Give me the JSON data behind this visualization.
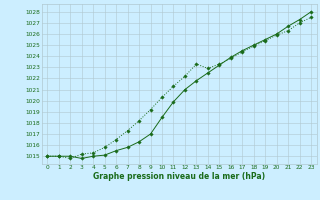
{
  "xlabel": "Graphe pression niveau de la mer (hPa)",
  "bg_color": "#cceeff",
  "line_color": "#1a6b1a",
  "grid_color": "#b0c8d0",
  "xlim": [
    -0.5,
    23.5
  ],
  "ylim": [
    1014.3,
    1028.7
  ],
  "yticks": [
    1015,
    1016,
    1017,
    1018,
    1019,
    1020,
    1021,
    1022,
    1023,
    1024,
    1025,
    1026,
    1027,
    1028
  ],
  "xticks": [
    0,
    1,
    2,
    3,
    4,
    5,
    6,
    7,
    8,
    9,
    10,
    11,
    12,
    13,
    14,
    15,
    16,
    17,
    18,
    19,
    20,
    21,
    22,
    23
  ],
  "series1_x": [
    0,
    1,
    2,
    3,
    4,
    5,
    6,
    7,
    8,
    9,
    10,
    11,
    12,
    13,
    14,
    15,
    16,
    17,
    18,
    19,
    20,
    21,
    22,
    23
  ],
  "series1_y": [
    1015.0,
    1015.0,
    1014.8,
    1015.2,
    1015.3,
    1015.8,
    1016.5,
    1017.3,
    1018.2,
    1019.2,
    1020.3,
    1021.3,
    1022.2,
    1023.3,
    1022.9,
    1023.3,
    1023.8,
    1024.4,
    1024.9,
    1025.4,
    1025.9,
    1026.3,
    1027.0,
    1027.5
  ],
  "series2_x": [
    0,
    1,
    2,
    3,
    4,
    5,
    6,
    7,
    8,
    9,
    10,
    11,
    12,
    13,
    14,
    15,
    16,
    17,
    18,
    19,
    20,
    21,
    22,
    23
  ],
  "series2_y": [
    1015.0,
    1015.0,
    1015.0,
    1014.8,
    1015.0,
    1015.1,
    1015.5,
    1015.8,
    1016.3,
    1017.0,
    1018.5,
    1019.9,
    1021.0,
    1021.8,
    1022.5,
    1023.2,
    1023.9,
    1024.5,
    1025.0,
    1025.5,
    1026.0,
    1026.7,
    1027.3,
    1028.0
  ]
}
